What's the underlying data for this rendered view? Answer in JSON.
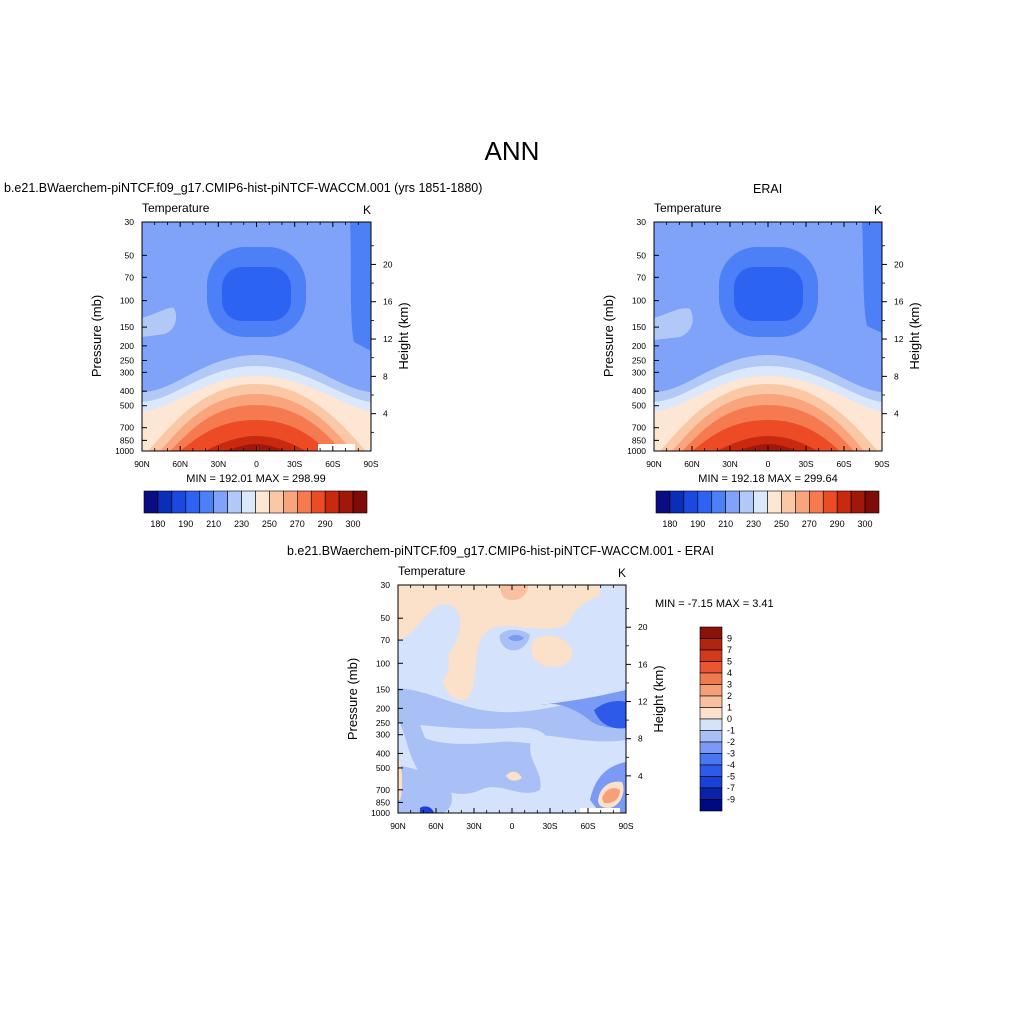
{
  "figure": {
    "main_title": "ANN",
    "panel_titles": {
      "model": "b.e21.BWaerchem-piNTCF.f09_g17.CMIP6-hist-piNTCF-WACCM.001 (yrs 1851-1880)",
      "obs": "ERAI",
      "diff": "b.e21.BWaerchem-piNTCF.f09_g17.CMIP6-hist-piNTCF-WACCM.001 - ERAI"
    },
    "colors": {
      "abs_levels": [
        "#0b0b86",
        "#0a2dba",
        "#1a48e0",
        "#2d63f2",
        "#4d7ff7",
        "#7ea3f8",
        "#b2c9f7",
        "#dbe8fb",
        "#fde6d4",
        "#fbc8a6",
        "#f9a47c",
        "#f67a50",
        "#ec4b25",
        "#c9290f",
        "#a0180a",
        "#7d0c06"
      ],
      "diff_levels": [
        "#000a80",
        "#0a22a8",
        "#1a40d8",
        "#2d5ae8",
        "#4a76f0",
        "#7a9af5",
        "#a8c0f5",
        "#d4e3fb",
        "#fbe0ca",
        "#f8c0a0",
        "#f6a07a",
        "#f27a50",
        "#ea5632",
        "#d23a1c",
        "#b02410",
        "#8a1208"
      ]
    }
  },
  "chart_data": [
    {
      "type": "heatmap",
      "title": "Temperature",
      "units": "K",
      "xlabel": "",
      "ylabel": "Pressure (mb)",
      "ylabel_right": "Height (km)",
      "x_ticks": [
        "90N",
        "60N",
        "30N",
        "0",
        "30S",
        "60S",
        "90S"
      ],
      "y_ticks": [
        "30",
        "50",
        "70",
        "100",
        "150",
        "200",
        "250",
        "300",
        "400",
        "500",
        "700",
        "850",
        "1000"
      ],
      "y_right_ticks": [
        "20",
        "16",
        "12",
        "8",
        "4"
      ],
      "ylim": [
        1000,
        30
      ],
      "stats": "MIN = 192.01  MAX = 298.99",
      "colorbar_ticks": [
        "180",
        "190",
        "210",
        "230",
        "250",
        "270",
        "290",
        "300"
      ]
    },
    {
      "type": "heatmap",
      "title": "Temperature",
      "units": "K",
      "xlabel": "",
      "ylabel": "Pressure (mb)",
      "ylabel_right": "Height (km)",
      "x_ticks": [
        "90N",
        "60N",
        "30N",
        "0",
        "30S",
        "60S",
        "90S"
      ],
      "y_ticks": [
        "30",
        "50",
        "70",
        "100",
        "150",
        "200",
        "250",
        "300",
        "400",
        "500",
        "700",
        "850",
        "1000"
      ],
      "y_right_ticks": [
        "20",
        "16",
        "12",
        "8",
        "4"
      ],
      "ylim": [
        1000,
        30
      ],
      "stats": "MIN = 192.18  MAX = 299.64",
      "colorbar_ticks": [
        "180",
        "190",
        "210",
        "230",
        "250",
        "270",
        "290",
        "300"
      ]
    },
    {
      "type": "heatmap",
      "title": "Temperature",
      "units": "K",
      "xlabel": "",
      "ylabel": "Pressure (mb)",
      "ylabel_right": "Height (km)",
      "x_ticks": [
        "90N",
        "60N",
        "30N",
        "0",
        "30S",
        "60S",
        "90S"
      ],
      "y_ticks": [
        "30",
        "50",
        "70",
        "100",
        "150",
        "200",
        "250",
        "300",
        "400",
        "500",
        "700",
        "850",
        "1000"
      ],
      "y_right_ticks": [
        "20",
        "16",
        "12",
        "8",
        "4"
      ],
      "ylim": [
        1000,
        30
      ],
      "stats": "MIN =  -7.15  MAX =   3.41",
      "colorbar_ticks": [
        "9",
        "7",
        "5",
        "4",
        "3",
        "2",
        "1",
        "0",
        "-1",
        "-2",
        "-3",
        "-4",
        "-5",
        "-7",
        "-9"
      ]
    }
  ]
}
